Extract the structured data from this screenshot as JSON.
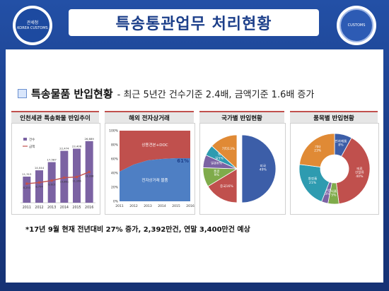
{
  "header": {
    "title": "특송통관업무 처리현황",
    "left_logo_text": "관세청 KOREA CUSTOMS SERVICE",
    "left_logo_label": "관세청",
    "left_logo_sub": "KOREA CUSTOMS",
    "right_logo_label": "CUSTOMS"
  },
  "headline": {
    "main": "특송물품 반입현황",
    "sub": "- 최근 5년간 건수기준 2.4배, 금액기준 1.6배 증가"
  },
  "panels": {
    "p1": "인천세관 특송화물 반입추이",
    "p2": "해외 전자상거래",
    "p3": "국가별 반입현황",
    "p4": "품목별 반입현황"
  },
  "footnote": "*17년 9월 현재 전년대비 27% 증가,  2,392만건, 연말  3,400만건 예상",
  "colors": {
    "accent": "#c0504d",
    "bar": "#7b62a3",
    "line": "#c0504d",
    "bg": "#1c3f8a"
  },
  "chart_data": [
    {
      "type": "bar",
      "title": "인천세관 특송화물 반입추이",
      "categories": [
        "2011",
        "2012",
        "2013",
        "2014",
        "2015",
        "2016"
      ],
      "legend": [
        "건수",
        "금액"
      ],
      "series": [
        {
          "name": "건수",
          "values": [
            11313,
            14044,
            17587,
            22474,
            23406,
            26689
          ],
          "labels": [
            "11,313",
            "14,044",
            "17,587",
            "22,474",
            "23,406",
            "26,689"
          ]
        },
        {
          "name": "금액",
          "values": [
            8253,
            8754,
            9615,
            10861,
            11166,
            13338
          ],
          "labels": [
            "8,253",
            "8,754",
            "9,615",
            "10,861",
            "11,166",
            "13,338"
          ]
        }
      ]
    },
    {
      "type": "area",
      "title": "해외 전자상거래",
      "x": [
        "2011",
        "2012",
        "2013",
        "2014",
        "2015",
        "2016"
      ],
      "yticks": [
        "0%",
        "20%",
        "40%",
        "60%",
        "80%",
        "100%"
      ],
      "ylim": [
        0,
        100
      ],
      "series": [
        {
          "name": "전자상거래 물품",
          "values": [
            42,
            52,
            58,
            60,
            61,
            61
          ]
        },
        {
          "name": "상용견본+DOC",
          "values": [
            58,
            48,
            42,
            40,
            39,
            39
          ]
        }
      ],
      "annotation": "61%"
    },
    {
      "type": "pie",
      "title": "국가별 반입현황",
      "slices": [
        {
          "label": "미국",
          "value": 49,
          "text": "미국 49%",
          "color": "#3c5ea8"
        },
        {
          "label": "중국",
          "value": 16,
          "text": "중국16%",
          "color": "#c0504d"
        },
        {
          "label": "홍콩",
          "value": 9,
          "text": "홍콩 9%",
          "color": "#7fab4b"
        },
        {
          "label": "일본",
          "value": 6,
          "text": "일본6%",
          "color": "#7b62a3"
        },
        {
          "label": "독일",
          "value": 5,
          "text": "독 일5%",
          "color": "#2e9bb0"
        },
        {
          "label": "기타",
          "value": 13,
          "text": "기타13%",
          "color": "#e08a35"
        }
      ]
    },
    {
      "type": "pie",
      "title": "품목별 반입현황",
      "slices": [
        {
          "label": "전자제품",
          "value": 8,
          "text": "전자제품 8%",
          "color": "#3c5ea8"
        },
        {
          "label": "의류/신발",
          "value": 40,
          "text": "의류 신발류 40%",
          "color": "#c0504d"
        },
        {
          "label": "식품",
          "value": 5,
          "text": "식품 5%",
          "color": "#7fab4b"
        },
        {
          "label": "가방",
          "value": 3,
          "text": "가방 3%",
          "color": "#7b62a3"
        },
        {
          "label": "화장품",
          "value": 21,
          "text": "화장품 21%",
          "color": "#2e9bb0"
        },
        {
          "label": "기타",
          "value": 23,
          "text": "기타 23%",
          "color": "#e08a35"
        }
      ]
    }
  ]
}
